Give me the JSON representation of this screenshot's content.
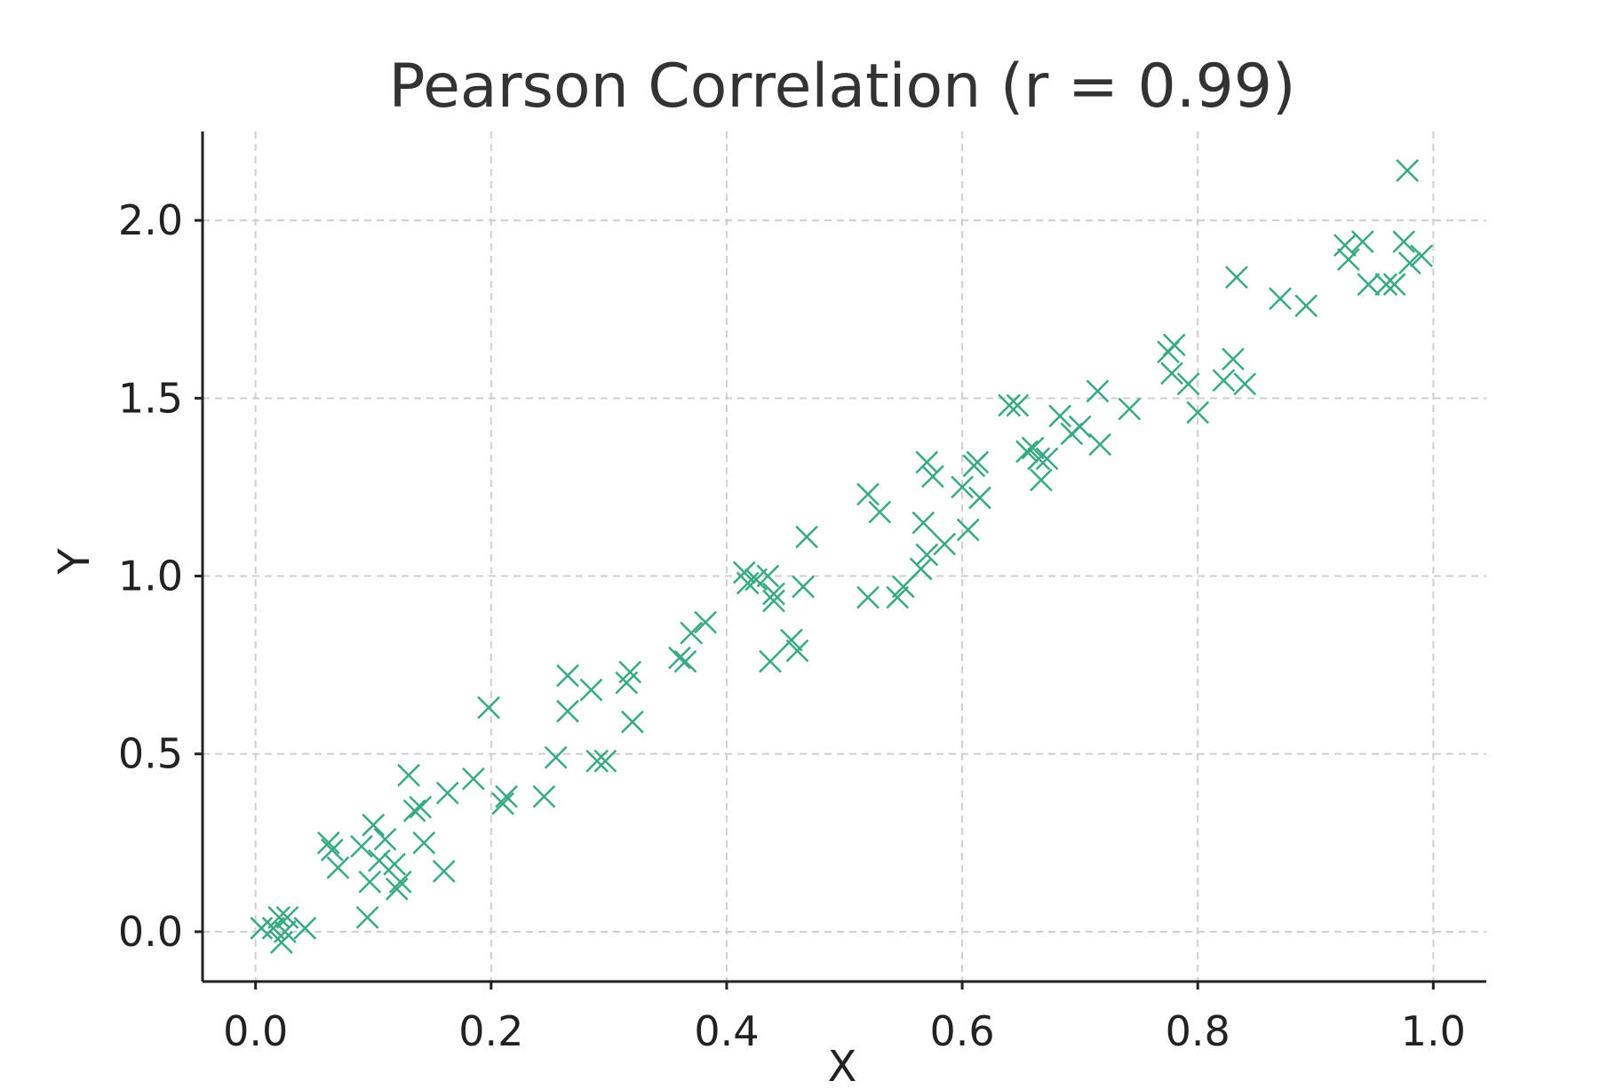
{
  "chart_data": {
    "type": "scatter",
    "title": "Pearson Correlation (r = 0.99)",
    "xlabel": "X",
    "ylabel": "Y",
    "xlim": [
      -0.045,
      1.045
    ],
    "ylim": [
      -0.14,
      2.25
    ],
    "xticks": [
      "0.0",
      "0.2",
      "0.4",
      "0.6",
      "0.8",
      "1.0"
    ],
    "yticks": [
      "0.0",
      "0.5",
      "1.0",
      "1.5",
      "2.0"
    ],
    "grid": true,
    "marker": "x",
    "color": "#3aa982",
    "series": [
      {
        "points": [
          [
            0.005,
            0.01
          ],
          [
            0.015,
            0.01
          ],
          [
            0.02,
            0.04
          ],
          [
            0.022,
            -0.03
          ],
          [
            0.025,
            0.0
          ],
          [
            0.027,
            0.04
          ],
          [
            0.042,
            0.01
          ],
          [
            0.062,
            0.25
          ],
          [
            0.065,
            0.23
          ],
          [
            0.07,
            0.18
          ],
          [
            0.09,
            0.24
          ],
          [
            0.095,
            0.04
          ],
          [
            0.097,
            0.14
          ],
          [
            0.1,
            0.3
          ],
          [
            0.105,
            0.2
          ],
          [
            0.11,
            0.26
          ],
          [
            0.118,
            0.19
          ],
          [
            0.12,
            0.12
          ],
          [
            0.123,
            0.14
          ],
          [
            0.13,
            0.44
          ],
          [
            0.135,
            0.34
          ],
          [
            0.14,
            0.35
          ],
          [
            0.143,
            0.25
          ],
          [
            0.16,
            0.17
          ],
          [
            0.163,
            0.39
          ],
          [
            0.185,
            0.43
          ],
          [
            0.198,
            0.63
          ],
          [
            0.21,
            0.36
          ],
          [
            0.213,
            0.38
          ],
          [
            0.245,
            0.38
          ],
          [
            0.255,
            0.49
          ],
          [
            0.265,
            0.72
          ],
          [
            0.265,
            0.62
          ],
          [
            0.285,
            0.68
          ],
          [
            0.29,
            0.48
          ],
          [
            0.297,
            0.48
          ],
          [
            0.315,
            0.7
          ],
          [
            0.318,
            0.73
          ],
          [
            0.32,
            0.59
          ],
          [
            0.36,
            0.77
          ],
          [
            0.365,
            0.76
          ],
          [
            0.37,
            0.84
          ],
          [
            0.382,
            0.87
          ],
          [
            0.415,
            1.01
          ],
          [
            0.418,
            0.98
          ],
          [
            0.425,
            0.99
          ],
          [
            0.435,
            1.0
          ],
          [
            0.437,
            0.76
          ],
          [
            0.44,
            0.95
          ],
          [
            0.44,
            0.93
          ],
          [
            0.455,
            0.82
          ],
          [
            0.46,
            0.79
          ],
          [
            0.465,
            0.97
          ],
          [
            0.468,
            1.11
          ],
          [
            0.52,
            1.23
          ],
          [
            0.52,
            0.94
          ],
          [
            0.53,
            1.18
          ],
          [
            0.545,
            0.94
          ],
          [
            0.55,
            0.97
          ],
          [
            0.565,
            1.02
          ],
          [
            0.567,
            1.15
          ],
          [
            0.57,
            1.06
          ],
          [
            0.57,
            1.32
          ],
          [
            0.575,
            1.28
          ],
          [
            0.585,
            1.09
          ],
          [
            0.6,
            1.25
          ],
          [
            0.605,
            1.13
          ],
          [
            0.61,
            1.31
          ],
          [
            0.613,
            1.32
          ],
          [
            0.615,
            1.22
          ],
          [
            0.64,
            1.48
          ],
          [
            0.647,
            1.48
          ],
          [
            0.655,
            1.35
          ],
          [
            0.66,
            1.36
          ],
          [
            0.665,
            1.33
          ],
          [
            0.667,
            1.27
          ],
          [
            0.672,
            1.33
          ],
          [
            0.683,
            1.45
          ],
          [
            0.693,
            1.4
          ],
          [
            0.7,
            1.42
          ],
          [
            0.715,
            1.52
          ],
          [
            0.717,
            1.37
          ],
          [
            0.742,
            1.47
          ],
          [
            0.775,
            1.63
          ],
          [
            0.778,
            1.57
          ],
          [
            0.78,
            1.65
          ],
          [
            0.792,
            1.54
          ],
          [
            0.8,
            1.46
          ],
          [
            0.822,
            1.55
          ],
          [
            0.83,
            1.61
          ],
          [
            0.833,
            1.84
          ],
          [
            0.84,
            1.54
          ],
          [
            0.87,
            1.78
          ],
          [
            0.892,
            1.76
          ],
          [
            0.925,
            1.93
          ],
          [
            0.928,
            1.89
          ],
          [
            0.94,
            1.94
          ],
          [
            0.945,
            1.82
          ],
          [
            0.96,
            1.82
          ],
          [
            0.967,
            1.82
          ],
          [
            0.975,
            1.94
          ],
          [
            0.978,
            2.14
          ],
          [
            0.98,
            1.88
          ],
          [
            0.99,
            1.9
          ]
        ]
      }
    ]
  }
}
